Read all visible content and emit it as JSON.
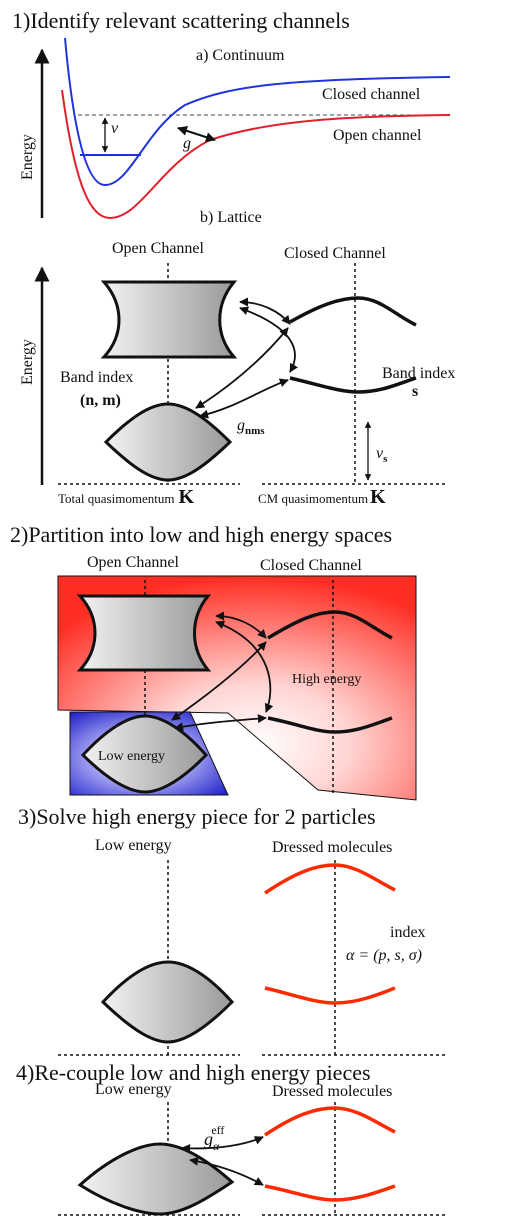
{
  "sections": {
    "s1": {
      "title": "1)Identify relevant scattering channels",
      "sub_a": "a) Continuum",
      "energy_axis": "Energy",
      "closed": "Closed channel",
      "open": "Open channel",
      "nu": "ν",
      "g": "g",
      "sub_b": "b) Lattice",
      "open_channel": "Open Channel",
      "closed_channel": "Closed Channel",
      "band_index_left": "Band index",
      "band_index_left_vars": "(n, m)",
      "band_index_right": "Band index",
      "band_index_right_var": "s",
      "g_nms": "g",
      "g_nms_sub": "nms",
      "nu_s": "ν",
      "nu_s_sub": "s",
      "total_K": "Total quasimomentum",
      "cm_K": "CM quasimomentum",
      "K": "K"
    },
    "s2": {
      "title": "2)Partition into low and high energy spaces",
      "open_channel": "Open Channel",
      "closed_channel": "Closed Channel",
      "high": "High energy",
      "low": "Low energy"
    },
    "s3": {
      "title": "3)Solve high energy piece for 2 particles",
      "low": "Low energy",
      "dressed": "Dressed molecules",
      "index": "index",
      "alpha_eq": "α = (p, s, σ)"
    },
    "s4": {
      "title": "4)Re-couple low and high energy pieces",
      "low": "Low energy",
      "dressed": "Dressed molecules",
      "g": "g",
      "g_sub": "α",
      "g_sup": "eff"
    }
  },
  "colors": {
    "closed_curve": "#2233dd",
    "open_curve": "#e0202a",
    "high_region": "#ff3b30",
    "low_region": "#2a2ad0",
    "dressed": "#ff2a00"
  }
}
